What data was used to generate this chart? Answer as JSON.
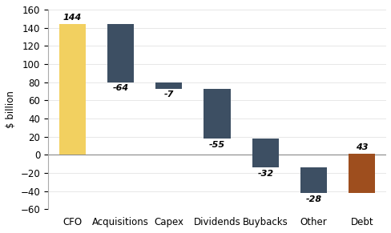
{
  "categories": [
    "CFO",
    "Acquisitions",
    "Capex",
    "Dividends",
    "Buybacks",
    "Other",
    "Debt"
  ],
  "values": [
    144,
    -64,
    -7,
    -55,
    -32,
    -28,
    43
  ],
  "bar_colors": [
    "#f2d060",
    "#3d4f63",
    "#3d4f63",
    "#3d4f63",
    "#3d4f63",
    "#3d4f63",
    "#9e4e1e"
  ],
  "ylabel": "$ billion",
  "ylim": [
    -60,
    160
  ],
  "yticks": [
    -60,
    -40,
    -20,
    0,
    20,
    40,
    60,
    80,
    100,
    120,
    140,
    160
  ],
  "background_color": "#ffffff",
  "label_fontsize": 8,
  "label_fontweight": "bold",
  "axis_fontsize": 8.5,
  "bar_width": 0.55,
  "figsize": [
    4.89,
    2.91
  ],
  "dpi": 100
}
